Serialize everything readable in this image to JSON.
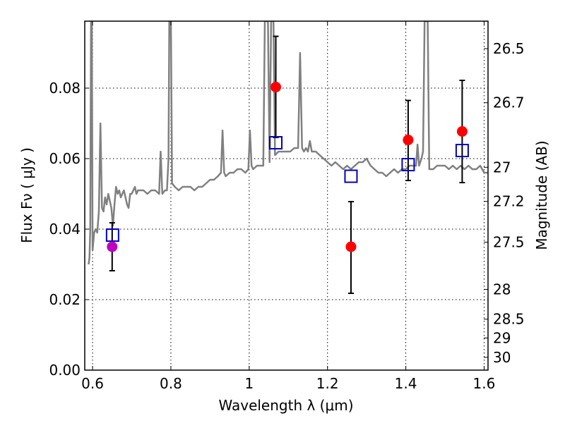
{
  "chart_data": {
    "type": "scatter",
    "xlabel": "Wavelength  λ (μm)",
    "ylabel": "Flux  Fν  ( μJy )",
    "ylabel_right": "Magnitude (AB)",
    "xlim": [
      0.58,
      1.61
    ],
    "ylim": [
      0.0,
      0.099
    ],
    "grid": true,
    "x_ticks": [
      {
        "value": 0.6,
        "label": "0.6"
      },
      {
        "value": 0.8,
        "label": "0.8"
      },
      {
        "value": 1.0,
        "label": "1"
      },
      {
        "value": 1.2,
        "label": "1.2"
      },
      {
        "value": 1.4,
        "label": "1.4"
      },
      {
        "value": 1.6,
        "label": "1.6"
      }
    ],
    "y_ticks": [
      {
        "value": 0.0,
        "label": "0.00"
      },
      {
        "value": 0.02,
        "label": "0.02"
      },
      {
        "value": 0.04,
        "label": "0.04"
      },
      {
        "value": 0.06,
        "label": "0.06"
      },
      {
        "value": 0.08,
        "label": "0.08"
      }
    ],
    "mag_ticks": [
      {
        "value": 26.5,
        "label": "26.5"
      },
      {
        "value": 26.7,
        "label": "26.7"
      },
      {
        "value": 27.0,
        "label": "27"
      },
      {
        "value": 27.2,
        "label": "27.2"
      },
      {
        "value": 27.5,
        "label": "27.5"
      },
      {
        "value": 28.0,
        "label": "28"
      },
      {
        "value": 28.5,
        "label": "28.5"
      },
      {
        "value": 29.0,
        "label": "29"
      },
      {
        "value": 30.0,
        "label": "30"
      }
    ],
    "colors": {
      "spectrum": "#808080",
      "observed": "#ff0000",
      "observed_alt": "#bf00bf",
      "model": "#0000bf",
      "errorbar": "#000000"
    },
    "series": [
      {
        "kind": "spectrum",
        "points": [
          [
            0.59,
            0.03
          ],
          [
            0.592,
            0.032
          ],
          [
            0.594,
            0.04
          ],
          [
            0.596,
            0.099
          ],
          [
            0.598,
            0.099
          ],
          [
            0.6,
            0.034
          ],
          [
            0.604,
            0.039
          ],
          [
            0.608,
            0.04
          ],
          [
            0.612,
            0.039
          ],
          [
            0.616,
            0.045
          ],
          [
            0.62,
            0.07
          ],
          [
            0.624,
            0.046
          ],
          [
            0.628,
            0.045
          ],
          [
            0.632,
            0.049
          ],
          [
            0.636,
            0.047
          ],
          [
            0.64,
            0.05
          ],
          [
            0.644,
            0.048
          ],
          [
            0.648,
            0.046
          ],
          [
            0.652,
            0.041
          ],
          [
            0.656,
            0.047
          ],
          [
            0.66,
            0.052
          ],
          [
            0.664,
            0.05
          ],
          [
            0.668,
            0.051
          ],
          [
            0.672,
            0.049
          ],
          [
            0.676,
            0.05
          ],
          [
            0.68,
            0.051
          ],
          [
            0.684,
            0.049
          ],
          [
            0.688,
            0.047
          ],
          [
            0.692,
            0.046
          ],
          [
            0.696,
            0.05
          ],
          [
            0.7,
            0.05
          ],
          [
            0.704,
            0.051
          ],
          [
            0.708,
            0.052
          ],
          [
            0.712,
            0.05
          ],
          [
            0.716,
            0.051
          ],
          [
            0.72,
            0.051
          ],
          [
            0.73,
            0.051
          ],
          [
            0.74,
            0.05
          ],
          [
            0.75,
            0.051
          ],
          [
            0.76,
            0.051
          ],
          [
            0.77,
            0.05
          ],
          [
            0.774,
            0.062
          ],
          [
            0.778,
            0.05
          ],
          [
            0.785,
            0.051
          ],
          [
            0.79,
            0.051
          ],
          [
            0.794,
            0.06
          ],
          [
            0.796,
            0.099
          ],
          [
            0.8,
            0.099
          ],
          [
            0.803,
            0.053
          ],
          [
            0.81,
            0.052
          ],
          [
            0.82,
            0.051
          ],
          [
            0.83,
            0.052
          ],
          [
            0.84,
            0.052
          ],
          [
            0.85,
            0.052
          ],
          [
            0.86,
            0.051
          ],
          [
            0.87,
            0.052
          ],
          [
            0.88,
            0.052
          ],
          [
            0.89,
            0.053
          ],
          [
            0.9,
            0.054
          ],
          [
            0.91,
            0.054
          ],
          [
            0.92,
            0.055
          ],
          [
            0.928,
            0.056
          ],
          [
            0.932,
            0.068
          ],
          [
            0.936,
            0.056
          ],
          [
            0.94,
            0.055
          ],
          [
            0.95,
            0.056
          ],
          [
            0.96,
            0.056
          ],
          [
            0.97,
            0.057
          ],
          [
            0.98,
            0.057
          ],
          [
            0.99,
            0.056
          ],
          [
            0.998,
            0.057
          ],
          [
            1.002,
            0.068
          ],
          [
            1.006,
            0.058
          ],
          [
            1.01,
            0.057
          ],
          [
            1.02,
            0.058
          ],
          [
            1.03,
            0.058
          ],
          [
            1.036,
            0.058
          ],
          [
            1.04,
            0.099
          ],
          [
            1.048,
            0.099
          ],
          [
            1.052,
            0.059
          ],
          [
            1.056,
            0.099
          ],
          [
            1.062,
            0.099
          ],
          [
            1.066,
            0.061
          ],
          [
            1.075,
            0.062
          ],
          [
            1.085,
            0.062
          ],
          [
            1.095,
            0.062
          ],
          [
            1.105,
            0.062
          ],
          [
            1.115,
            0.063
          ],
          [
            1.125,
            0.063
          ],
          [
            1.13,
            0.09
          ],
          [
            1.135,
            0.063
          ],
          [
            1.14,
            0.062
          ],
          [
            1.145,
            0.063
          ],
          [
            1.15,
            0.062
          ],
          [
            1.155,
            0.065
          ],
          [
            1.16,
            0.062
          ],
          [
            1.17,
            0.062
          ],
          [
            1.18,
            0.061
          ],
          [
            1.19,
            0.06
          ],
          [
            1.2,
            0.059
          ],
          [
            1.21,
            0.058
          ],
          [
            1.22,
            0.059
          ],
          [
            1.23,
            0.058
          ],
          [
            1.24,
            0.057
          ],
          [
            1.25,
            0.058
          ],
          [
            1.26,
            0.057
          ],
          [
            1.27,
            0.058
          ],
          [
            1.28,
            0.059
          ],
          [
            1.29,
            0.059
          ],
          [
            1.3,
            0.06
          ],
          [
            1.31,
            0.058
          ],
          [
            1.32,
            0.057
          ],
          [
            1.33,
            0.056
          ],
          [
            1.34,
            0.056
          ],
          [
            1.35,
            0.055
          ],
          [
            1.36,
            0.056
          ],
          [
            1.37,
            0.057
          ],
          [
            1.38,
            0.056
          ],
          [
            1.39,
            0.057
          ],
          [
            1.4,
            0.057
          ],
          [
            1.41,
            0.058
          ],
          [
            1.42,
            0.058
          ],
          [
            1.426,
            0.058
          ],
          [
            1.43,
            0.064
          ],
          [
            1.434,
            0.058
          ],
          [
            1.44,
            0.06
          ],
          [
            1.444,
            0.062
          ],
          [
            1.448,
            0.099
          ],
          [
            1.456,
            0.099
          ],
          [
            1.46,
            0.057
          ],
          [
            1.47,
            0.057
          ],
          [
            1.48,
            0.058
          ],
          [
            1.49,
            0.058
          ],
          [
            1.5,
            0.058
          ],
          [
            1.51,
            0.057
          ],
          [
            1.52,
            0.058
          ],
          [
            1.53,
            0.057
          ],
          [
            1.54,
            0.058
          ],
          [
            1.55,
            0.057
          ],
          [
            1.56,
            0.058
          ],
          [
            1.57,
            0.057
          ],
          [
            1.58,
            0.057
          ],
          [
            1.59,
            0.058
          ],
          [
            1.6,
            0.056
          ],
          [
            1.61,
            0.056
          ]
        ]
      },
      {
        "kind": "observed",
        "points": [
          {
            "x": 0.65,
            "y": 0.035,
            "lo": 0.0282,
            "hi": 0.0418,
            "alt": true
          },
          {
            "x": 1.068,
            "y": 0.0803,
            "lo": 0.066,
            "hi": 0.0947,
            "alt": false
          },
          {
            "x": 1.26,
            "y": 0.035,
            "lo": 0.0218,
            "hi": 0.0478,
            "alt": false
          },
          {
            "x": 1.406,
            "y": 0.0653,
            "lo": 0.0538,
            "hi": 0.0765,
            "alt": false
          },
          {
            "x": 1.544,
            "y": 0.0677,
            "lo": 0.0532,
            "hi": 0.0822,
            "alt": false
          }
        ]
      },
      {
        "kind": "model",
        "points": [
          {
            "x": 0.651,
            "y": 0.0383
          },
          {
            "x": 1.068,
            "y": 0.0645
          },
          {
            "x": 1.26,
            "y": 0.055
          },
          {
            "x": 1.406,
            "y": 0.0583
          },
          {
            "x": 1.544,
            "y": 0.0623
          }
        ]
      }
    ]
  }
}
